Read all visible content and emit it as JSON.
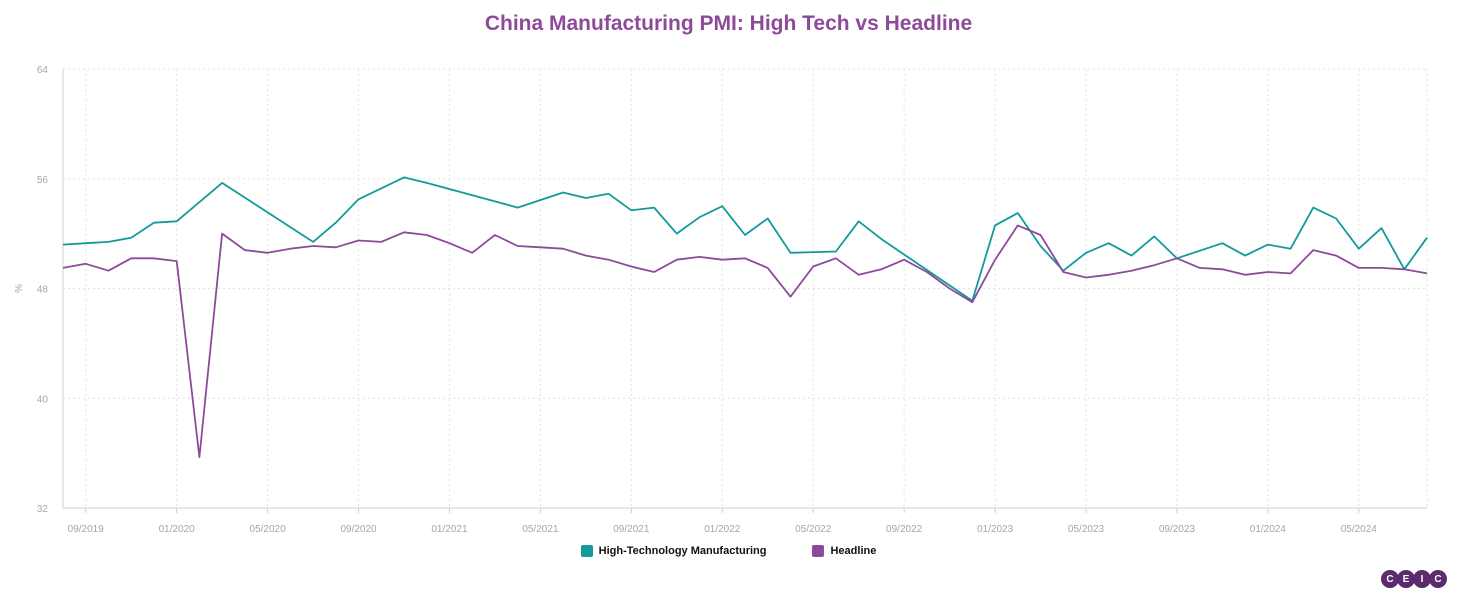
{
  "colors": {
    "title": "#8E4A9A",
    "high_tech": "#139A9A",
    "headline": "#8E4A9A",
    "grid": "#E2E2E2",
    "axis_text": "#A6A6A6",
    "logo": "#5B2B6E"
  },
  "logo": {
    "letters": [
      "C",
      "E",
      "I",
      "C"
    ]
  },
  "chart_data": {
    "type": "line",
    "title": "China Manufacturing PMI: High Tech vs Headline",
    "ylabel": "%",
    "xlabel": "",
    "ylim": [
      32,
      64
    ],
    "yticks": [
      32,
      40,
      48,
      56,
      64
    ],
    "xlim": [
      "2019-08",
      "2024-08"
    ],
    "xtick_labels": [
      "09/2019",
      "01/2020",
      "05/2020",
      "09/2020",
      "01/2021",
      "05/2021",
      "09/2021",
      "01/2022",
      "05/2022",
      "09/2022",
      "01/2023",
      "05/2023",
      "09/2023",
      "01/2024",
      "05/2024"
    ],
    "grid": true,
    "legend": "bottom-center",
    "x": [
      "2019-08",
      "2019-09",
      "2019-10",
      "2019-11",
      "2019-12",
      "2020-01",
      "2020-02",
      "2020-03",
      "2020-04",
      "2020-05",
      "2020-06",
      "2020-07",
      "2020-08",
      "2020-09",
      "2020-10",
      "2020-11",
      "2020-12",
      "2021-01",
      "2021-02",
      "2021-03",
      "2021-04",
      "2021-05",
      "2021-06",
      "2021-07",
      "2021-08",
      "2021-09",
      "2021-10",
      "2021-11",
      "2021-12",
      "2022-01",
      "2022-02",
      "2022-03",
      "2022-04",
      "2022-05",
      "2022-06",
      "2022-07",
      "2022-08",
      "2022-09",
      "2022-10",
      "2022-11",
      "2022-12",
      "2023-01",
      "2023-02",
      "2023-03",
      "2023-04",
      "2023-05",
      "2023-06",
      "2023-07",
      "2023-08",
      "2023-09",
      "2023-10",
      "2023-11",
      "2023-12",
      "2024-01",
      "2024-02",
      "2024-03",
      "2024-04",
      "2024-05",
      "2024-06",
      "2024-07",
      "2024-08"
    ],
    "series": [
      {
        "name": "High-Technology Manufacturing",
        "color": "#139A9A",
        "values": [
          51.2,
          51.3,
          51.4,
          51.7,
          52.8,
          52.9,
          null,
          55.7,
          null,
          null,
          null,
          51.4,
          52.8,
          54.5,
          null,
          56.1,
          55.7,
          null,
          null,
          null,
          53.9,
          null,
          55.0,
          54.6,
          54.9,
          53.7,
          53.9,
          52.0,
          53.2,
          54.0,
          51.9,
          53.1,
          50.6,
          null,
          50.7,
          52.9,
          51.6,
          null,
          null,
          null,
          47.1,
          52.6,
          53.5,
          51.1,
          49.3,
          50.6,
          51.3,
          50.4,
          51.8,
          50.2,
          null,
          51.3,
          50.4,
          51.2,
          50.9,
          53.9,
          53.1,
          50.9,
          52.4,
          49.4,
          51.7
        ]
      },
      {
        "name": "Headline",
        "color": "#8E4A9A",
        "values": [
          49.5,
          49.8,
          49.3,
          50.2,
          50.2,
          50.0,
          35.7,
          52.0,
          50.8,
          50.6,
          50.9,
          51.1,
          51.0,
          51.5,
          51.4,
          52.1,
          51.9,
          51.3,
          50.6,
          51.9,
          51.1,
          51.0,
          50.9,
          50.4,
          50.1,
          49.6,
          49.2,
          50.1,
          50.3,
          50.1,
          50.2,
          49.5,
          47.4,
          49.6,
          50.2,
          49.0,
          49.4,
          50.1,
          49.2,
          48.0,
          47.0,
          50.1,
          52.6,
          51.9,
          49.2,
          48.8,
          49.0,
          49.3,
          49.7,
          50.2,
          49.5,
          49.4,
          49.0,
          49.2,
          49.1,
          50.8,
          50.4,
          49.5,
          49.5,
          49.4,
          49.1
        ]
      }
    ]
  }
}
